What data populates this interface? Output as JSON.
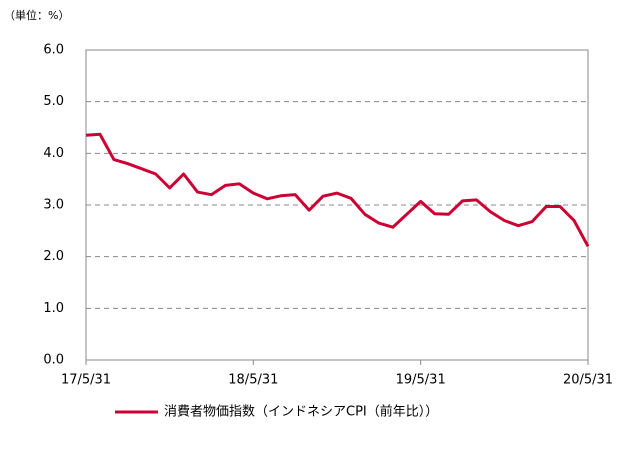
{
  "chart_data": {
    "type": "line",
    "unit_label": "（単位：%）",
    "categories": [
      "17/5/31",
      null,
      null,
      null,
      null,
      null,
      null,
      null,
      null,
      null,
      null,
      null,
      "18/5/31",
      null,
      null,
      null,
      null,
      null,
      null,
      null,
      null,
      null,
      null,
      null,
      "19/5/31",
      null,
      null,
      null,
      null,
      null,
      null,
      null,
      null,
      null,
      null,
      null,
      "20/5/31"
    ],
    "series": [
      {
        "name": "消費者物価指数（インドネシアCPI（前年比））",
        "color": "#cc0033",
        "values": [
          4.35,
          4.37,
          3.88,
          3.8,
          3.7,
          3.6,
          3.33,
          3.6,
          3.25,
          3.2,
          3.38,
          3.41,
          3.23,
          3.12,
          3.18,
          3.2,
          2.9,
          3.17,
          3.23,
          3.13,
          2.82,
          2.65,
          2.57,
          2.82,
          3.07,
          2.83,
          2.82,
          3.08,
          3.1,
          2.87,
          2.7,
          2.6,
          2.68,
          2.97,
          2.97,
          2.7,
          2.2
        ]
      }
    ],
    "ylim": [
      0,
      6
    ],
    "yticks": [
      {
        "value": 0,
        "label": "0.0"
      },
      {
        "value": 1,
        "label": "1.0"
      },
      {
        "value": 2,
        "label": "2.0"
      },
      {
        "value": 3,
        "label": "3.0"
      },
      {
        "value": 4,
        "label": "4.0"
      },
      {
        "value": 5,
        "label": "5.0"
      },
      {
        "value": 6,
        "label": "6.0"
      }
    ],
    "grid": true,
    "legend": "bottom"
  }
}
